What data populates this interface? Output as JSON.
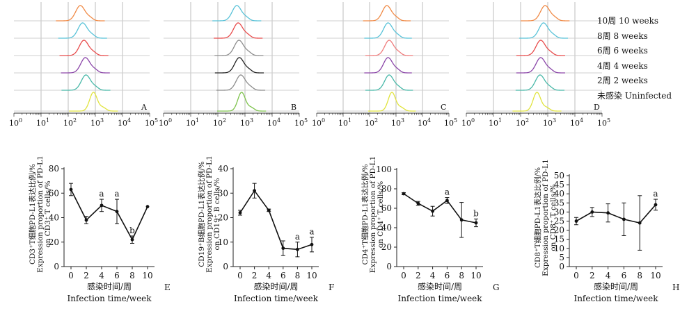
{
  "legend": {
    "items": [
      "10周  10  weeks",
      "8周  8  weeks",
      "6周  6  weeks",
      "4周  4  weeks",
      "2周  2  weeks",
      "未感染  Uninfected"
    ]
  },
  "colors": {
    "10w": "#f08a46",
    "8w": "#58c2d8",
    "6w": "#e84b4b",
    "4w": "#8a45a8",
    "2w": "#48b8a8",
    "uninfected": "#e0e33c",
    "gray": "#8c8c8c",
    "black": "#222222",
    "green": "#7cc24a",
    "pink": "#ef7b7b"
  },
  "chart_data": [
    {
      "type": "area",
      "panel": "A",
      "x_ticks": [
        "10",
        "10",
        "10",
        "10",
        "10",
        "10"
      ],
      "x_tick_exponents": [
        "0",
        "1",
        "2",
        "3",
        "4",
        "5"
      ],
      "xscale": "log",
      "xlim": [
        1,
        100000
      ],
      "series_colors": [
        "#f08a46",
        "#58c2d8",
        "#e84b4b",
        "#8a45a8",
        "#48b8a8",
        "#e0e33c"
      ],
      "series_peaks": [
        280,
        340,
        380,
        430,
        450,
        850
      ],
      "grid": true
    },
    {
      "type": "area",
      "panel": "B",
      "x_ticks": [
        "10",
        "10",
        "10",
        "10",
        "10",
        "10"
      ],
      "x_tick_exponents": [
        "0",
        "1",
        "2",
        "3",
        "4",
        "5"
      ],
      "xscale": "log",
      "xlim": [
        1,
        100000
      ],
      "series_colors": [
        "#58c2d8",
        "#e84b4b",
        "#8c8c8c",
        "#222222",
        "#8c8c8c",
        "#7cc24a"
      ],
      "series_peaks": [
        500,
        560,
        600,
        620,
        700,
        750
      ],
      "grid": true
    },
    {
      "type": "area",
      "panel": "C",
      "x_ticks": [
        "10",
        "10",
        "10",
        "10",
        "10",
        "10"
      ],
      "x_tick_exponents": [
        "0",
        "1",
        "2",
        "3",
        "4",
        "5"
      ],
      "xscale": "log",
      "xlim": [
        1,
        100000
      ],
      "series_colors": [
        "#f08a46",
        "#58c2d8",
        "#ef7b7b",
        "#8a45a8",
        "#48b8a8",
        "#e0e33c"
      ],
      "series_peaks": [
        450,
        500,
        550,
        500,
        550,
        700
      ],
      "grid": true
    },
    {
      "type": "area",
      "panel": "D",
      "x_ticks": [
        "10",
        "10",
        "10",
        "10",
        "10",
        "10"
      ],
      "x_tick_exponents": [
        "0",
        "1",
        "2",
        "3",
        "4",
        "5"
      ],
      "xscale": "log",
      "xlim": [
        1,
        100000
      ],
      "series_colors": [
        "#f08a46",
        "#58c2d8",
        "#e84b4b",
        "#8a45a8",
        "#48b8a8",
        "#e0e33c"
      ],
      "series_peaks": [
        800,
        700,
        550,
        550,
        520,
        400
      ],
      "grid": true
    },
    {
      "type": "line",
      "panel": "E",
      "ylabel": "CD3⁺T细胞PD-L1表达比例/% Expression proportion of PD-L1 on CD3⁺ T cells/%",
      "xlabel_cn": "感染时间/周",
      "xlabel_en": "Infection time/week",
      "x": [
        0,
        2,
        4,
        6,
        8,
        10
      ],
      "y": [
        63,
        38,
        50,
        45,
        22,
        49
      ],
      "err": [
        5,
        3,
        5,
        10,
        3,
        0
      ],
      "annotations": [
        {
          "x": 4,
          "text": "a"
        },
        {
          "x": 6,
          "text": "a"
        },
        {
          "x": 8,
          "text": "b"
        }
      ],
      "ylim": [
        0,
        80
      ],
      "yticks": [
        0,
        20,
        40,
        60,
        80
      ],
      "xticks": [
        0,
        2,
        4,
        6,
        8,
        10
      ]
    },
    {
      "type": "line",
      "panel": "F",
      "ylabel": "CD19⁺B细胞PD-L1表达比例/% Expression proportion of PD-L1 on CD19⁺ B cells/%",
      "xlabel_cn": "感染时间/周",
      "xlabel_en": "Infection time/week",
      "x": [
        0,
        2,
        4,
        6,
        8,
        10
      ],
      "y": [
        22,
        31,
        23,
        7.5,
        7,
        9
      ],
      "err": [
        1,
        3,
        0.5,
        3,
        3,
        3
      ],
      "annotations": [
        {
          "x": 8,
          "text": "a"
        },
        {
          "x": 10,
          "text": "a"
        }
      ],
      "ylim": [
        0,
        40
      ],
      "yticks": [
        0,
        10,
        20,
        30,
        40
      ],
      "xticks": [
        0,
        2,
        4,
        6,
        8,
        10
      ]
    },
    {
      "type": "line",
      "panel": "G",
      "ylabel": "CD4⁺T细胞PD-L1表达比例/% Expression proportion of PD-L1 on CD4⁺ T cells/%",
      "xlabel_cn": "感染时间/周",
      "xlabel_en": "Infection time/week",
      "x": [
        0,
        2,
        4,
        6,
        8,
        10
      ],
      "y": [
        75,
        65,
        57,
        68,
        48,
        45
      ],
      "err": [
        1,
        2,
        5,
        3,
        18,
        4
      ],
      "annotations": [
        {
          "x": 6,
          "text": "a"
        },
        {
          "x": 10,
          "text": "b"
        }
      ],
      "ylim": [
        0,
        100
      ],
      "yticks": [
        0,
        20,
        40,
        60,
        80,
        100
      ],
      "xticks": [
        0,
        2,
        4,
        6,
        8,
        10
      ]
    },
    {
      "type": "line",
      "panel": "H",
      "ylabel": "CD8⁺T细胞PD-L1表达比例/% Expression proportion of PD-L1 on CD8⁺ T cells/%",
      "xlabel_cn": "感染时间/周",
      "xlabel_en": "Infection time/week",
      "x": [
        0,
        2,
        4,
        6,
        8,
        10
      ],
      "y": [
        25,
        30,
        29.5,
        26,
        24,
        34
      ],
      "err": [
        2,
        2.5,
        5,
        9,
        15,
        3
      ],
      "annotations": [
        {
          "x": 10,
          "text": "a"
        }
      ],
      "ylim": [
        0,
        50
      ],
      "yticks": [
        0,
        5,
        10,
        15,
        20,
        25,
        30,
        35,
        40,
        45,
        50
      ],
      "xticks": [
        0,
        2,
        4,
        6,
        8,
        10
      ]
    }
  ]
}
